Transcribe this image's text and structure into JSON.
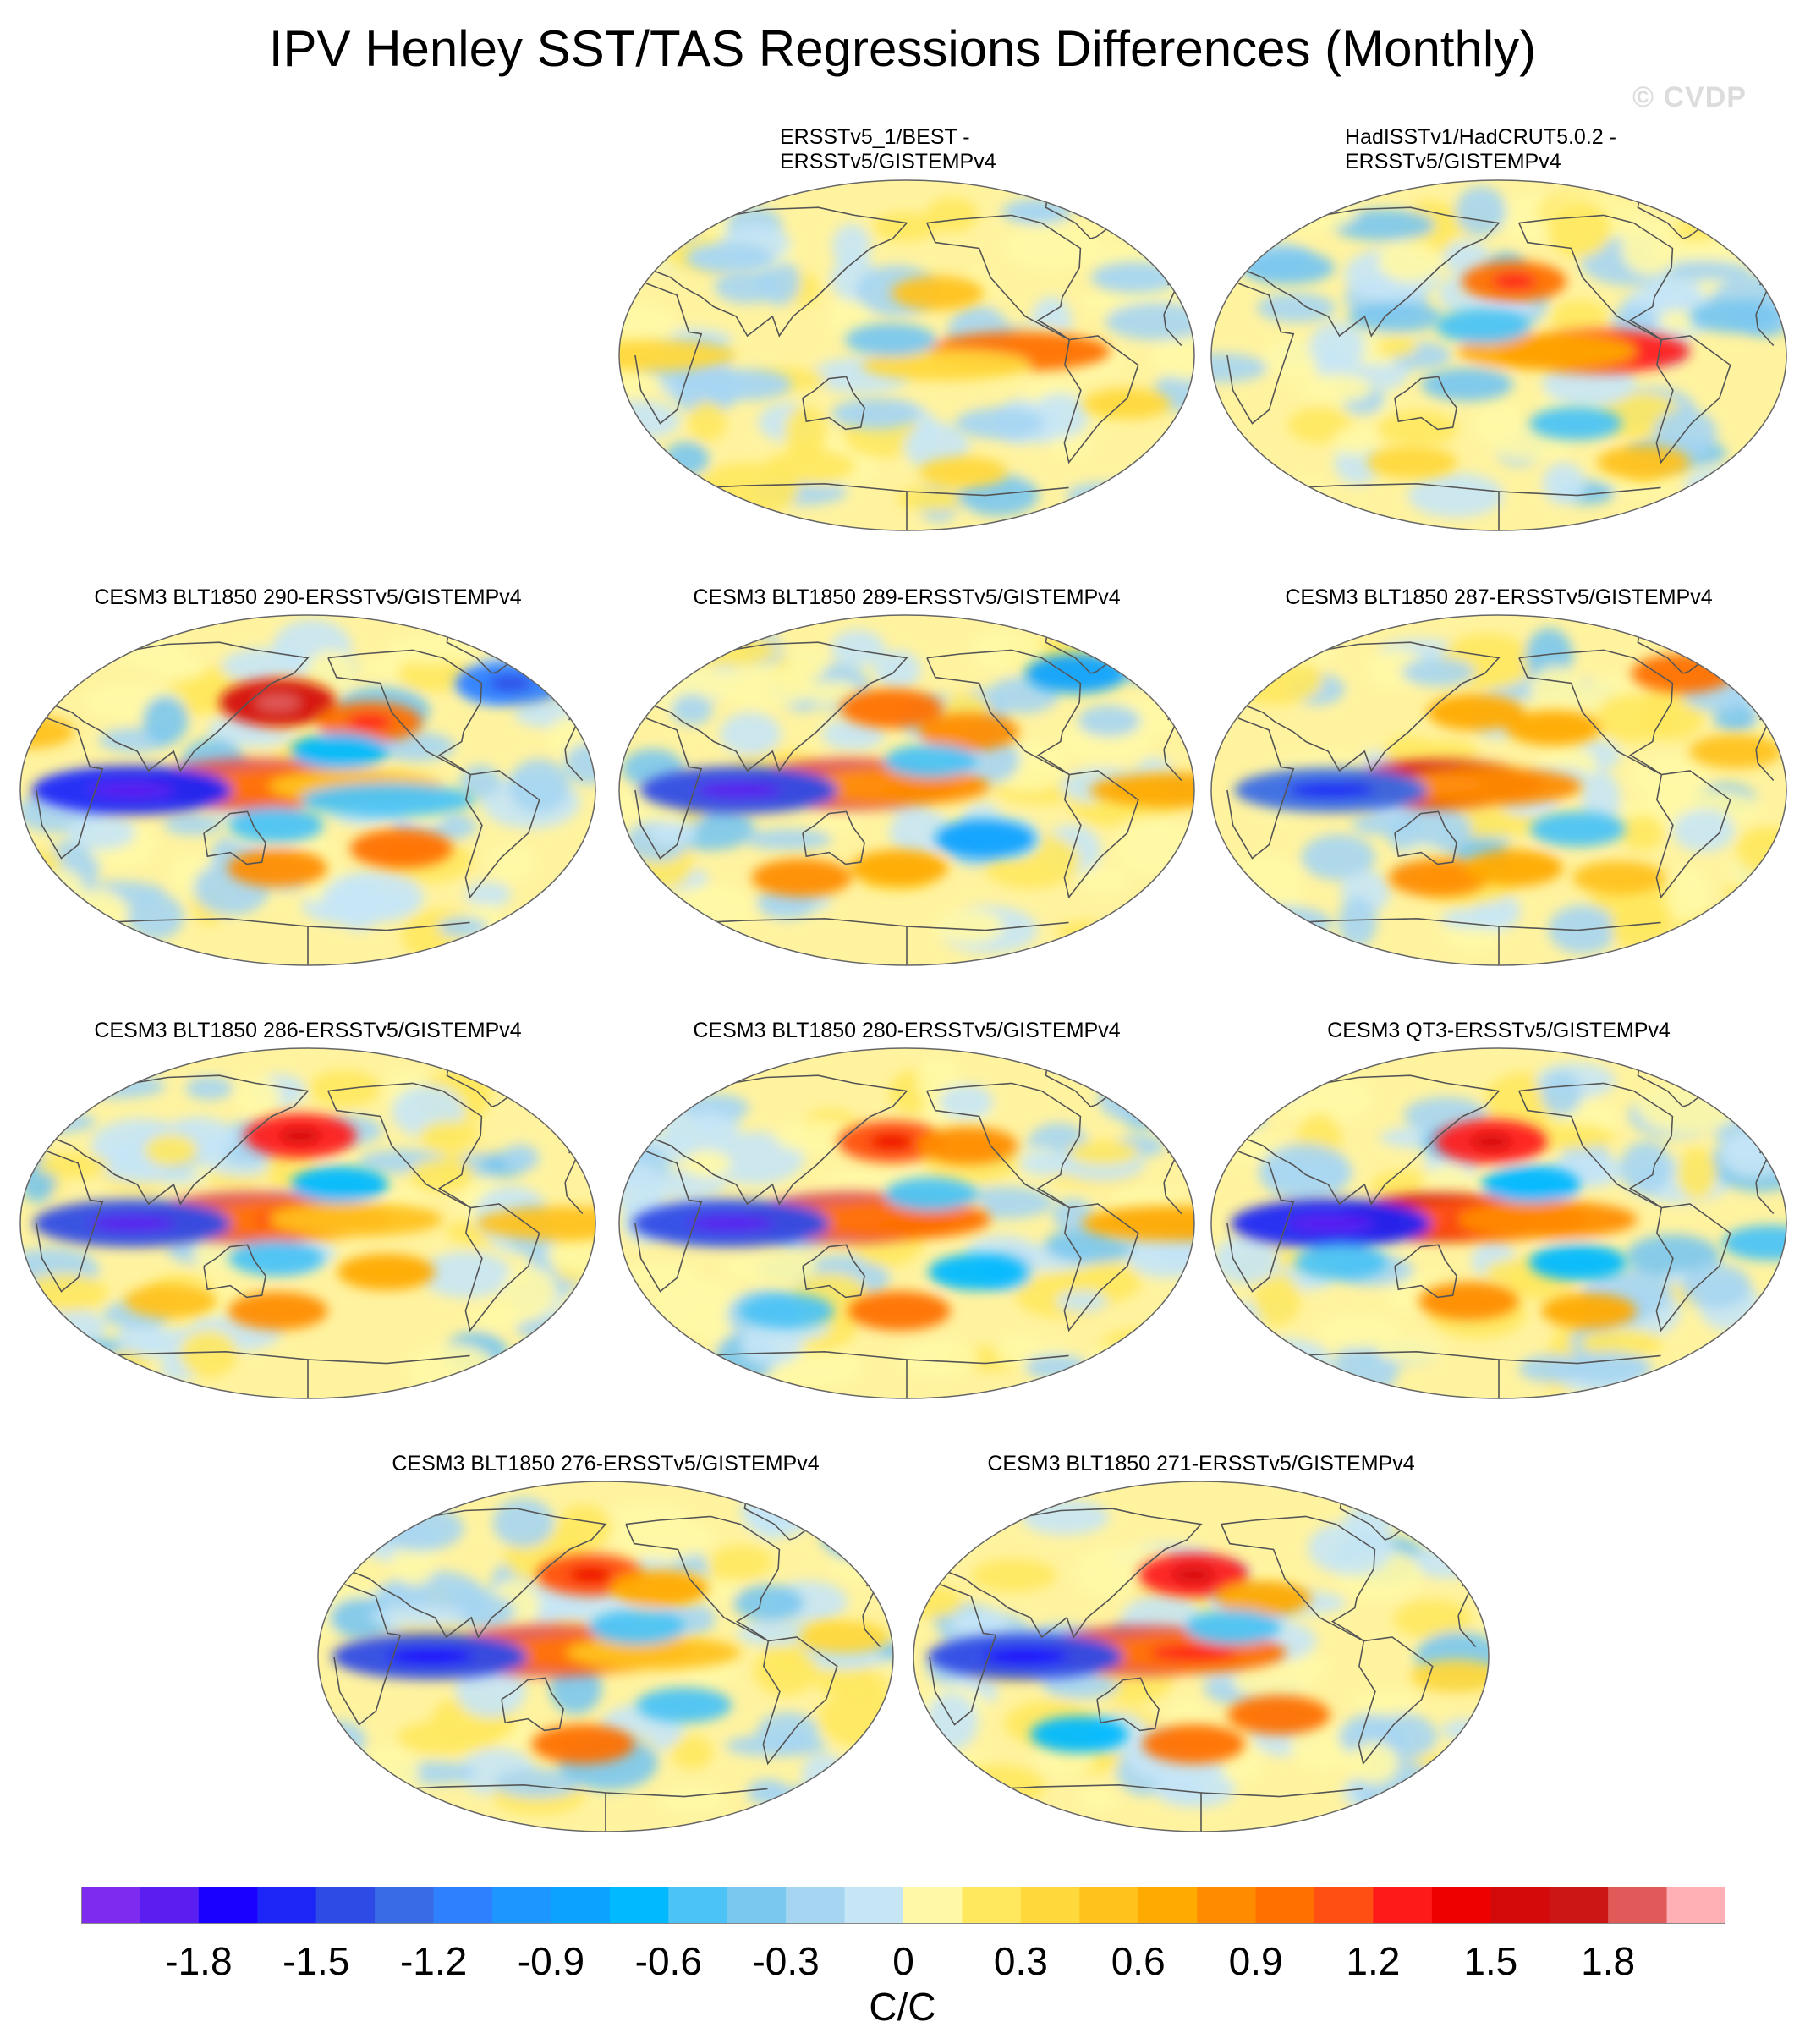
{
  "title": "IPV Henley SST/TAS Regressions Differences (Monthly)",
  "watermark": "© CVDP",
  "colors": {
    "land_line": "#555555",
    "frame": "#666666"
  },
  "panels": [
    {
      "id": "p1",
      "title_lines": [
        "ERSSTv5_1/BEST -",
        "ERSSTv5/GISTEMPv4"
      ],
      "align": "left",
      "features": [
        {
          "lon": -160,
          "lat": 32,
          "value": 0.5
        },
        {
          "lon": -110,
          "lat": 2,
          "value": 0.9
        },
        {
          "lon": -155,
          "lat": -5,
          "value": 0.3
        },
        {
          "lon": 170,
          "lat": 8,
          "value": -0.45
        },
        {
          "lon": 160,
          "lat": -30,
          "value": -0.3
        },
        {
          "lon": -120,
          "lat": -35,
          "value": -0.3
        },
        {
          "lon": 80,
          "lat": -15,
          "value": -0.3
        },
        {
          "lon": -30,
          "lat": 40,
          "value": -0.3
        },
        {
          "lon": 60,
          "lat": 50,
          "value": -0.3
        },
        {
          "lon": -140,
          "lat": -60,
          "value": 0.3
        },
        {
          "lon": -40,
          "lat": -25,
          "value": 0.3
        },
        {
          "lon": 20,
          "lat": 0,
          "value": 0.3
        }
      ]
    },
    {
      "id": "p2",
      "title_lines": [
        "HadISSTv1/HadCRUT5.0.2 -",
        "ERSSTv5/GISTEMPv4"
      ],
      "align": "left",
      "features": [
        {
          "lon": -170,
          "lat": 38,
          "value": 1.0
        },
        {
          "lon": -120,
          "lat": 2,
          "value": 1.2
        },
        {
          "lon": -150,
          "lat": 2,
          "value": 0.7
        },
        {
          "lon": 170,
          "lat": 15,
          "value": -0.6
        },
        {
          "lon": 160,
          "lat": -15,
          "value": -0.45
        },
        {
          "lon": -130,
          "lat": -35,
          "value": -0.5
        },
        {
          "lon": -30,
          "lat": 20,
          "value": -0.45
        },
        {
          "lon": 40,
          "lat": 45,
          "value": -0.45
        },
        {
          "lon": -80,
          "lat": -55,
          "value": 0.5
        },
        {
          "lon": 120,
          "lat": -55,
          "value": 0.4
        }
      ]
    },
    {
      "id": "p3",
      "title_lines": [
        "CESM3 BLT1850 290-ERSSTv5/GISTEMPv4"
      ],
      "align": "center",
      "features": [
        {
          "lon": 145,
          "lat": 3,
          "value": 1.9
        },
        {
          "lon": 175,
          "lat": 2,
          "value": 0.9
        },
        {
          "lon": -150,
          "lat": 2,
          "value": 0.5
        },
        {
          "lon": 70,
          "lat": 0,
          "value": -1.6
        },
        {
          "lon": 160,
          "lat": 45,
          "value": 1.5
        },
        {
          "lon": -140,
          "lat": 35,
          "value": 1.0
        },
        {
          "lon": -120,
          "lat": -30,
          "value": 0.9
        },
        {
          "lon": 160,
          "lat": -40,
          "value": 0.8
        },
        {
          "lon": -160,
          "lat": 20,
          "value": -0.7
        },
        {
          "lon": 160,
          "lat": -18,
          "value": -0.6
        },
        {
          "lon": -130,
          "lat": -5,
          "value": -0.5
        },
        {
          "lon": -40,
          "lat": 55,
          "value": -1.2
        },
        {
          "lon": 0,
          "lat": 30,
          "value": 0.5
        }
      ]
    },
    {
      "id": "p4",
      "title_lines": [
        "CESM3 BLT1850 289-ERSSTv5/GISTEMPv4"
      ],
      "align": "center",
      "features": [
        {
          "lon": 145,
          "lat": 3,
          "value": 1.9
        },
        {
          "lon": 175,
          "lat": 2,
          "value": 0.8
        },
        {
          "lon": 75,
          "lat": 0,
          "value": -1.5
        },
        {
          "lon": 170,
          "lat": 42,
          "value": 0.9
        },
        {
          "lon": -140,
          "lat": 30,
          "value": 0.8
        },
        {
          "lon": -130,
          "lat": -25,
          "value": -0.8
        },
        {
          "lon": 110,
          "lat": -45,
          "value": 0.8
        },
        {
          "lon": 175,
          "lat": -40,
          "value": 0.7
        },
        {
          "lon": -10,
          "lat": 0,
          "value": 0.6
        },
        {
          "lon": -165,
          "lat": 15,
          "value": -0.5
        },
        {
          "lon": -60,
          "lat": 60,
          "value": -0.9
        }
      ]
    },
    {
      "id": "p5",
      "title_lines": [
        "CESM3 BLT1850 287-ERSSTv5/GISTEMPv4"
      ],
      "align": "center",
      "features": [
        {
          "lon": 145,
          "lat": 3,
          "value": 1.6
        },
        {
          "lon": 175,
          "lat": 2,
          "value": 0.8
        },
        {
          "lon": 75,
          "lat": 0,
          "value": -1.3
        },
        {
          "lon": 165,
          "lat": 40,
          "value": 0.7
        },
        {
          "lon": -145,
          "lat": 32,
          "value": 0.6
        },
        {
          "lon": -130,
          "lat": -20,
          "value": -0.6
        },
        {
          "lon": 140,
          "lat": -45,
          "value": 0.8
        },
        {
          "lon": -170,
          "lat": -40,
          "value": 0.7
        },
        {
          "lon": -100,
          "lat": -45,
          "value": 0.5
        },
        {
          "lon": -30,
          "lat": 20,
          "value": 0.5
        },
        {
          "lon": -50,
          "lat": 60,
          "value": 0.9
        }
      ]
    },
    {
      "id": "p6",
      "title_lines": [
        "CESM3 BLT1850 286-ERSSTv5/GISTEMPv4"
      ],
      "align": "center",
      "features": [
        {
          "lon": 145,
          "lat": 3,
          "value": 1.9
        },
        {
          "lon": 175,
          "lat": 2,
          "value": 1.0
        },
        {
          "lon": -150,
          "lat": 2,
          "value": 0.5
        },
        {
          "lon": 70,
          "lat": 0,
          "value": -1.5
        },
        {
          "lon": 175,
          "lat": 45,
          "value": 1.3
        },
        {
          "lon": -160,
          "lat": 20,
          "value": -0.7
        },
        {
          "lon": -130,
          "lat": -25,
          "value": 0.7
        },
        {
          "lon": 160,
          "lat": -45,
          "value": 0.8
        },
        {
          "lon": 160,
          "lat": -18,
          "value": -0.6
        },
        {
          "lon": -20,
          "lat": 0,
          "value": 0.5
        },
        {
          "lon": 90,
          "lat": -40,
          "value": 0.5
        }
      ]
    },
    {
      "id": "p7",
      "title_lines": [
        "CESM3 BLT1850 280-ERSSTv5/GISTEMPv4"
      ],
      "align": "center",
      "features": [
        {
          "lon": 145,
          "lat": 3,
          "value": 1.9
        },
        {
          "lon": 175,
          "lat": 2,
          "value": 0.9
        },
        {
          "lon": 70,
          "lat": 0,
          "value": -1.5
        },
        {
          "lon": 170,
          "lat": 42,
          "value": 1.1
        },
        {
          "lon": -140,
          "lat": 40,
          "value": 0.8
        },
        {
          "lon": -135,
          "lat": -25,
          "value": -0.7
        },
        {
          "lon": 175,
          "lat": -45,
          "value": 0.9
        },
        {
          "lon": 100,
          "lat": -45,
          "value": -0.6
        },
        {
          "lon": -15,
          "lat": 0,
          "value": 0.6
        },
        {
          "lon": -165,
          "lat": 15,
          "value": -0.5
        }
      ]
    },
    {
      "id": "p8",
      "title_lines": [
        "CESM3 QT3-ERSSTv5/GISTEMPv4"
      ],
      "align": "center",
      "features": [
        {
          "lon": 145,
          "lat": 3,
          "value": 1.6
        },
        {
          "lon": 175,
          "lat": 2,
          "value": 1.1
        },
        {
          "lon": -150,
          "lat": 2,
          "value": 0.8
        },
        {
          "lon": 75,
          "lat": 0,
          "value": -1.6
        },
        {
          "lon": 175,
          "lat": 42,
          "value": 1.3
        },
        {
          "lon": -160,
          "lat": 20,
          "value": -0.7
        },
        {
          "lon": -130,
          "lat": -20,
          "value": -0.7
        },
        {
          "lon": 160,
          "lat": -40,
          "value": 0.8
        },
        {
          "lon": -120,
          "lat": -45,
          "value": 0.6
        },
        {
          "lon": -10,
          "lat": -10,
          "value": -0.6
        },
        {
          "lon": 80,
          "lat": -20,
          "value": -0.5
        }
      ]
    },
    {
      "id": "p9",
      "title_lines": [
        "CESM3 BLT1850 276-ERSSTv5/GISTEMPv4"
      ],
      "align": "center",
      "features": [
        {
          "lon": 145,
          "lat": 3,
          "value": 1.9
        },
        {
          "lon": 175,
          "lat": 2,
          "value": 0.9
        },
        {
          "lon": -150,
          "lat": 2,
          "value": 0.5
        },
        {
          "lon": 70,
          "lat": 0,
          "value": -1.4
        },
        {
          "lon": 170,
          "lat": 42,
          "value": 1.1
        },
        {
          "lon": -145,
          "lat": 35,
          "value": 0.7
        },
        {
          "lon": -130,
          "lat": -25,
          "value": -0.6
        },
        {
          "lon": 165,
          "lat": -45,
          "value": 0.9
        },
        {
          "lon": -160,
          "lat": 15,
          "value": -0.6
        },
        {
          "lon": -30,
          "lat": 10,
          "value": 0.4
        }
      ]
    },
    {
      "id": "p10",
      "title_lines": [
        "CESM3 BLT1850 271-ERSSTv5/GISTEMPv4"
      ],
      "align": "center",
      "features": [
        {
          "lon": 145,
          "lat": 3,
          "value": 1.8
        },
        {
          "lon": 175,
          "lat": 2,
          "value": 1.0
        },
        {
          "lon": 70,
          "lat": 0,
          "value": -1.4
        },
        {
          "lon": 175,
          "lat": 42,
          "value": 1.2
        },
        {
          "lon": -140,
          "lat": 30,
          "value": 0.6
        },
        {
          "lon": -130,
          "lat": -30,
          "value": 0.9
        },
        {
          "lon": 175,
          "lat": -45,
          "value": 0.9
        },
        {
          "lon": 100,
          "lat": -40,
          "value": -0.7
        },
        {
          "lon": -160,
          "lat": 15,
          "value": -0.6
        },
        {
          "lon": -20,
          "lat": -10,
          "value": 0.4
        }
      ]
    }
  ],
  "chart_data": {
    "type": "heatmap",
    "title": "IPV Henley SST/TAS Regressions Differences (Monthly)",
    "projection": "Robinson, centered on 180° (Pacific-centered global maps)",
    "colorbar": {
      "units": "C/C",
      "levels": [
        -2.0,
        -1.8,
        -1.65,
        -1.5,
        -1.35,
        -1.2,
        -1.05,
        -0.9,
        -0.75,
        -0.6,
        -0.45,
        -0.3,
        -0.15,
        0,
        0.15,
        0.3,
        0.45,
        0.6,
        0.75,
        0.9,
        1.05,
        1.2,
        1.35,
        1.5,
        1.65,
        1.8,
        2.0
      ],
      "colors": [
        "#7f2bef",
        "#5a1ff0",
        "#1a00ff",
        "#1d26f6",
        "#2e4be6",
        "#3a6be6",
        "#2f80ff",
        "#1e96ff",
        "#0ca2ff",
        "#00b9ff",
        "#4cc3f6",
        "#7ac7ef",
        "#a6d5f2",
        "#c6e6f6",
        "#fff8a6",
        "#ffe85e",
        "#ffd83c",
        "#ffc21c",
        "#ffaa00",
        "#ff8c00",
        "#ff7000",
        "#ff4f12",
        "#ff1a1a",
        "#ee0000",
        "#d40a0a",
        "#cc1515",
        "#e05a5a",
        "#ffb0b5"
      ],
      "tick_values": [
        -1.8,
        -1.5,
        -1.2,
        -0.9,
        -0.6,
        -0.3,
        0,
        0.3,
        0.6,
        0.9,
        1.2,
        1.5,
        1.8
      ],
      "tick_labels": [
        "-1.8",
        "-1.5",
        "-1.2",
        "-0.9",
        "-0.6",
        "-0.3",
        "0",
        "0.3",
        "0.6",
        "0.9",
        "1.2",
        "1.5",
        "1.8"
      ]
    },
    "panels": [
      "ERSSTv5_1/BEST - ERSSTv5/GISTEMPv4",
      "HadISSTv1/HadCRUT5.0.2 - ERSSTv5/GISTEMPv4",
      "CESM3 BLT1850 290-ERSSTv5/GISTEMPv4",
      "CESM3 BLT1850 289-ERSSTv5/GISTEMPv4",
      "CESM3 BLT1850 287-ERSSTv5/GISTEMPv4",
      "CESM3 BLT1850 286-ERSSTv5/GISTEMPv4",
      "CESM3 BLT1850 280-ERSSTv5/GISTEMPv4",
      "CESM3 QT3-ERSSTv5/GISTEMPv4",
      "CESM3 BLT1850 276-ERSSTv5/GISTEMPv4",
      "CESM3 BLT1850 271-ERSSTv5/GISTEMPv4"
    ]
  }
}
